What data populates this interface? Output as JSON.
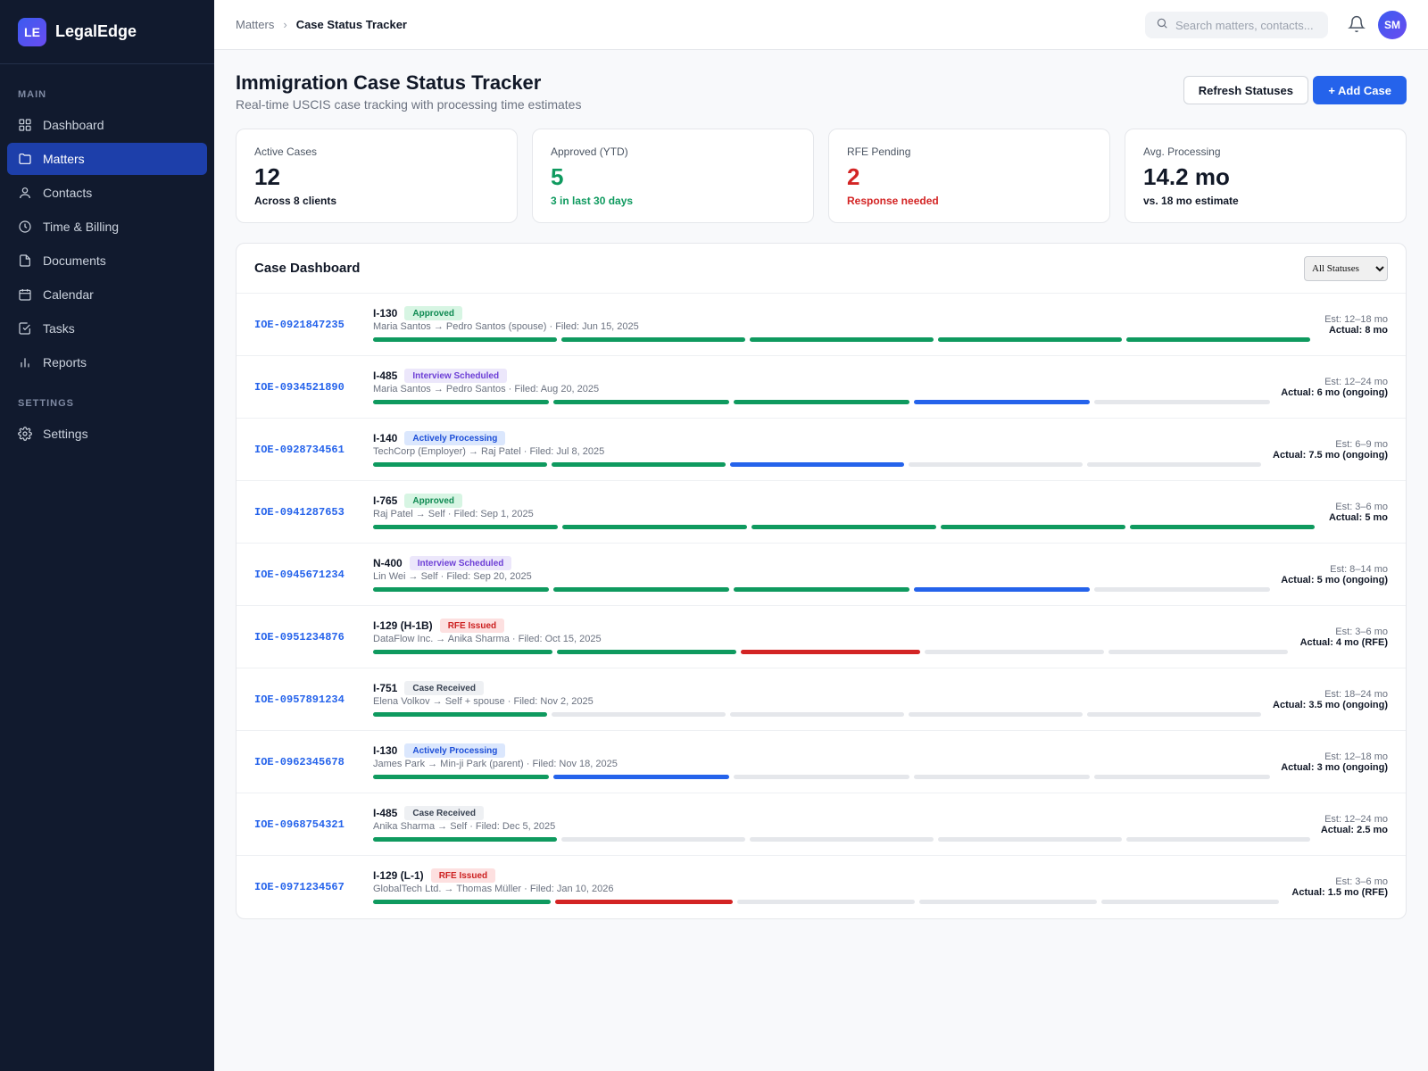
{
  "brand": {
    "logo": "LE",
    "name": "LegalEdge"
  },
  "sidebar": {
    "main_heading": "MAIN",
    "items": [
      {
        "label": "Dashboard",
        "icon": "grid-icon"
      },
      {
        "label": "Matters",
        "icon": "folder-icon",
        "active": true
      },
      {
        "label": "Contacts",
        "icon": "user-icon"
      },
      {
        "label": "Time & Billing",
        "icon": "clock-icon"
      },
      {
        "label": "Documents",
        "icon": "document-icon"
      },
      {
        "label": "Calendar",
        "icon": "calendar-icon"
      },
      {
        "label": "Tasks",
        "icon": "checkbox-icon"
      },
      {
        "label": "Reports",
        "icon": "bar-chart-icon"
      }
    ],
    "settings_heading": "SETTINGS",
    "settings_items": [
      {
        "label": "Settings",
        "icon": "gear-icon"
      }
    ]
  },
  "topbar": {
    "breadcrumb_parent": "Matters",
    "breadcrumb_current": "Case Status Tracker",
    "search_placeholder": "Search matters, contacts...",
    "avatar": "SM"
  },
  "page": {
    "title": "Immigration Case Status Tracker",
    "subtitle": "Real-time USCIS case tracking with processing time estimates",
    "refresh_label": "Refresh Statuses",
    "add_label": "+ Add Case"
  },
  "stats": [
    {
      "label": "Active Cases",
      "value": "12",
      "note": "Across 8 clients",
      "tone": "default"
    },
    {
      "label": "Approved (YTD)",
      "value": "5",
      "note": "3 in last 30 days",
      "tone": "green"
    },
    {
      "label": "RFE Pending",
      "value": "2",
      "note": "Response needed",
      "tone": "red"
    },
    {
      "label": "Avg. Processing",
      "value": "14.2 mo",
      "note": "vs. 18 mo estimate",
      "tone": "default"
    }
  ],
  "dashboard": {
    "title": "Case Dashboard",
    "filter_selected": "All Statuses",
    "filter_options": [
      "All Statuses"
    ]
  },
  "colors": {
    "accent": "#2563eb",
    "green": "#0f9a5f",
    "red": "#d32424",
    "gray": "#e5e7eb",
    "badges": {
      "Approved": {
        "bg": "#d7f5e3",
        "fg": "#0f8a52"
      },
      "Interview Scheduled": {
        "bg": "#ece7fb",
        "fg": "#6d3fd6"
      },
      "Actively Processing": {
        "bg": "#dbe7fd",
        "fg": "#1d4fd8"
      },
      "RFE Issued": {
        "bg": "#fde0e0",
        "fg": "#cc1f1f"
      },
      "Case Received": {
        "bg": "#eef0f3",
        "fg": "#374151"
      }
    }
  },
  "cases": [
    {
      "id": "IOE-0921847235",
      "form": "I-130",
      "status": "Approved",
      "subtitle": "Maria Santos → Pedro Santos (spouse) · Filed: Jun 15, 2025",
      "progress": [
        "green",
        "green",
        "green",
        "green",
        "green"
      ],
      "est": "Est: 12–18 mo",
      "actual": "Actual: 8 mo"
    },
    {
      "id": "IOE-0934521890",
      "form": "I-485",
      "status": "Interview Scheduled",
      "subtitle": "Maria Santos → Pedro Santos · Filed: Aug 20, 2025",
      "progress": [
        "green",
        "green",
        "green",
        "blue",
        "gray"
      ],
      "est": "Est: 12–24 mo",
      "actual": "Actual: 6 mo (ongoing)"
    },
    {
      "id": "IOE-0928734561",
      "form": "I-140",
      "status": "Actively Processing",
      "subtitle": "TechCorp (Employer) → Raj Patel · Filed: Jul 8, 2025",
      "progress": [
        "green",
        "green",
        "blue",
        "gray",
        "gray"
      ],
      "est": "Est: 6–9 mo",
      "actual": "Actual: 7.5 mo (ongoing)"
    },
    {
      "id": "IOE-0941287653",
      "form": "I-765",
      "status": "Approved",
      "subtitle": "Raj Patel → Self · Filed: Sep 1, 2025",
      "progress": [
        "green",
        "green",
        "green",
        "green",
        "green"
      ],
      "est": "Est: 3–6 mo",
      "actual": "Actual: 5 mo"
    },
    {
      "id": "IOE-0945671234",
      "form": "N-400",
      "status": "Interview Scheduled",
      "subtitle": "Lin Wei → Self · Filed: Sep 20, 2025",
      "progress": [
        "green",
        "green",
        "green",
        "blue",
        "gray"
      ],
      "est": "Est: 8–14 mo",
      "actual": "Actual: 5 mo (ongoing)"
    },
    {
      "id": "IOE-0951234876",
      "form": "I-129 (H-1B)",
      "status": "RFE Issued",
      "subtitle": "DataFlow Inc. → Anika Sharma · Filed: Oct 15, 2025",
      "progress": [
        "green",
        "green",
        "red",
        "gray",
        "gray"
      ],
      "est": "Est: 3–6 mo",
      "actual": "Actual: 4 mo (RFE)"
    },
    {
      "id": "IOE-0957891234",
      "form": "I-751",
      "status": "Case Received",
      "subtitle": "Elena Volkov → Self + spouse · Filed: Nov 2, 2025",
      "progress": [
        "green",
        "gray",
        "gray",
        "gray",
        "gray"
      ],
      "est": "Est: 18–24 mo",
      "actual": "Actual: 3.5 mo (ongoing)"
    },
    {
      "id": "IOE-0962345678",
      "form": "I-130",
      "status": "Actively Processing",
      "subtitle": "James Park → Min-ji Park (parent) · Filed: Nov 18, 2025",
      "progress": [
        "green",
        "blue",
        "gray",
        "gray",
        "gray"
      ],
      "est": "Est: 12–18 mo",
      "actual": "Actual: 3 mo (ongoing)"
    },
    {
      "id": "IOE-0968754321",
      "form": "I-485",
      "status": "Case Received",
      "subtitle": "Anika Sharma → Self · Filed: Dec 5, 2025",
      "progress": [
        "green",
        "gray",
        "gray",
        "gray",
        "gray"
      ],
      "est": "Est: 12–24 mo",
      "actual": "Actual: 2.5 mo"
    },
    {
      "id": "IOE-0971234567",
      "form": "I-129 (L-1)",
      "status": "RFE Issued",
      "subtitle": "GlobalTech Ltd. → Thomas Müller · Filed: Jan 10, 2026",
      "progress": [
        "green",
        "red",
        "gray",
        "gray",
        "gray"
      ],
      "est": "Est: 3–6 mo",
      "actual": "Actual: 1.5 mo (RFE)"
    }
  ]
}
